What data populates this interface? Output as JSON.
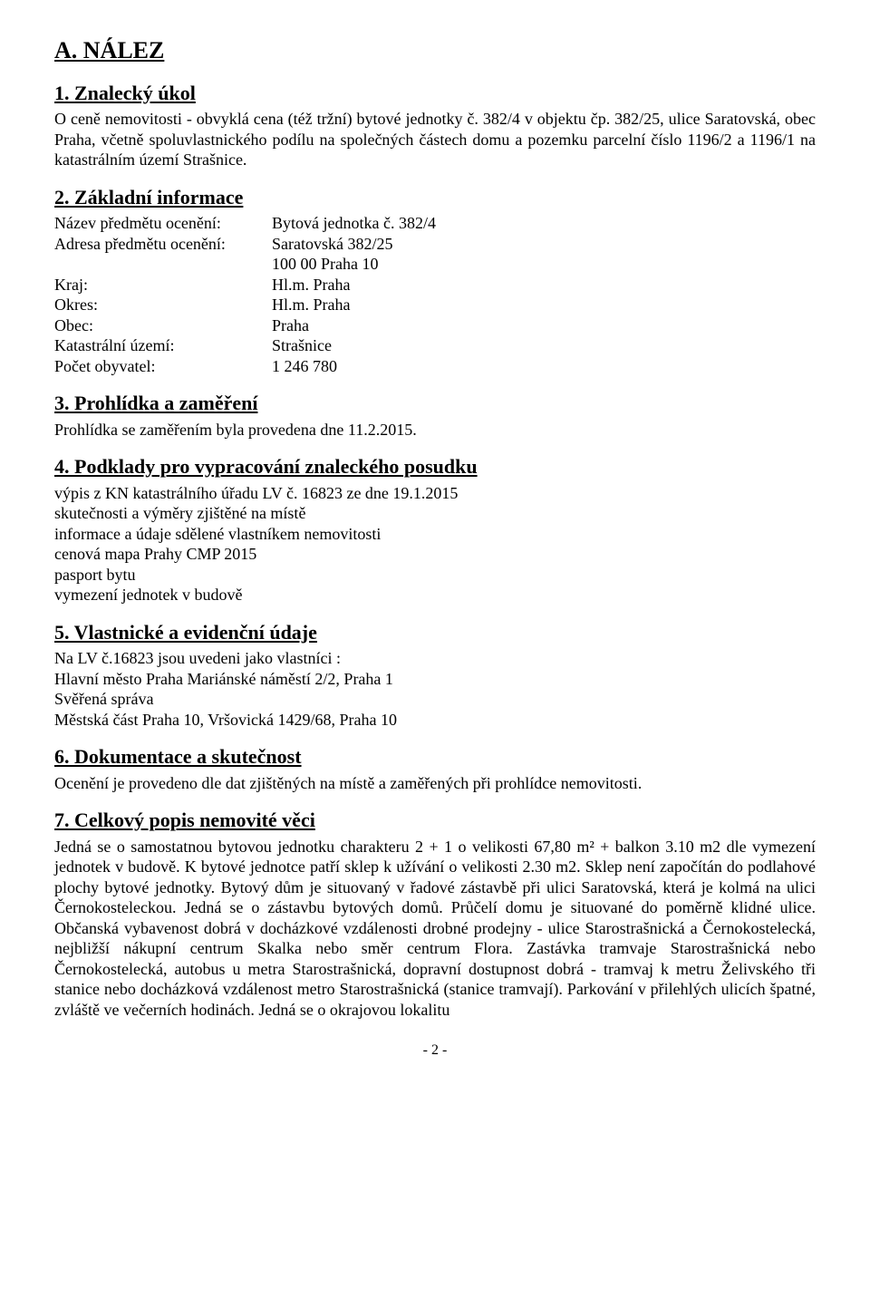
{
  "title_main": "A. NÁLEZ",
  "s1": {
    "heading": "1. Znalecký úkol",
    "p1": "O ceně nemovitosti - obvyklá cena (též tržní) bytové jednotky č. 382/4 v objektu čp. 382/25, ulice Saratovská, obec Praha, včetně spoluvlastnického podílu na společných částech domu a pozemku parcelní číslo 1196/2 a 1196/1 na katastrálním území Strašnice."
  },
  "s2": {
    "heading": "2. Základní informace",
    "rows": [
      {
        "k": "Název předmětu ocenění:",
        "v": "Bytová jednotka č. 382/4"
      },
      {
        "k": "Adresa předmětu ocenění:",
        "v": "Saratovská 382/25"
      },
      {
        "k": "",
        "v": "100 00 Praha 10"
      },
      {
        "k": "Kraj:",
        "v": "Hl.m. Praha"
      },
      {
        "k": "Okres:",
        "v": "Hl.m. Praha"
      },
      {
        "k": "Obec:",
        "v": "Praha"
      },
      {
        "k": "Katastrální území:",
        "v": "Strašnice"
      },
      {
        "k": "Počet obyvatel:",
        "v": "1 246 780"
      }
    ]
  },
  "s3": {
    "heading": "3. Prohlídka a zaměření",
    "p1": "Prohlídka se zaměřením byla provedena dne 11.2.2015."
  },
  "s4": {
    "heading": "4. Podklady pro vypracování znaleckého posudku",
    "lines": [
      "výpis z KN katastrálního úřadu LV č. 16823 ze dne 19.1.2015",
      "skutečnosti a výměry zjištěné na místě",
      "informace a údaje sdělené vlastníkem nemovitosti",
      "cenová mapa Prahy CMP 2015",
      "pasport bytu",
      "vymezení jednotek v budově"
    ]
  },
  "s5": {
    "heading": "5. Vlastnické a evidenční údaje",
    "lines": [
      "Na LV č.16823 jsou uvedeni jako vlastníci :",
      "Hlavní město Praha  Mariánské náměstí 2/2, Praha 1",
      "Svěřená správa",
      "Městská část Praha 10, Vršovická 1429/68, Praha 10"
    ]
  },
  "s6": {
    "heading": "6. Dokumentace a skutečnost",
    "p1": "Ocenění je provedeno dle dat zjištěných na místě a zaměřených při prohlídce nemovitosti."
  },
  "s7": {
    "heading": "7. Celkový popis nemovité věci",
    "p1": "Jedná se o samostatnou bytovou jednotku charakteru  2 + 1 o velikosti 67,80 m²  + balkon 3.10 m2 dle vymezení jednotek v budově. K bytové jednotce patří sklep k užívání o velikosti 2.30 m2. Sklep není započítán do podlahové plochy bytové jednotky. Bytový dům je situovaný v řadové zástavbě při ulici Saratovská, která je kolmá na ulici  Černokosteleckou. Jedná se o zástavbu  bytových domů. Průčelí domu je situované do poměrně klidné ulice. Občanská vybavenost dobrá v docházkové vzdálenosti drobné  prodejny - ulice Starostrašnická a Černokostelecká,  nejbližší nákupní centrum  Skalka nebo směr centrum Flora. Zastávka tramvaje Starostrašnická nebo Černokostelecká, autobus  u metra Starostrašnická, dopravní dostupnost dobrá - tramvaj k metru Želivského tři stanice nebo docházková vzdálenost metro Starostrašnická (stanice tramvají). Parkování v přilehlých ulicích špatné, zvláště ve večerních hodinách. Jedná se o okrajovou lokalitu"
  },
  "page_number": "- 2 -"
}
